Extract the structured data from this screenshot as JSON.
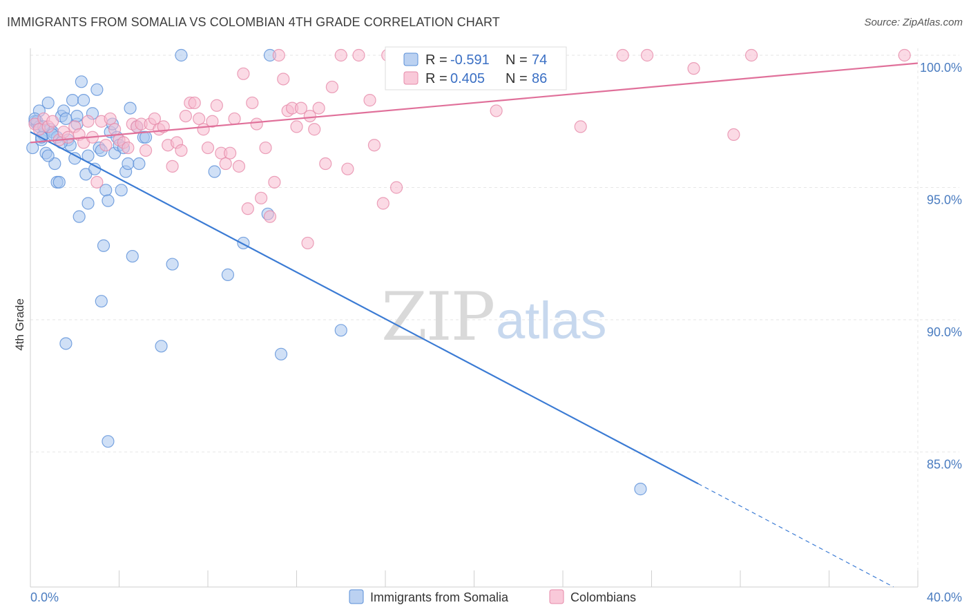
{
  "title": "IMMIGRANTS FROM SOMALIA VS COLOMBIAN 4TH GRADE CORRELATION CHART",
  "source": "Source: ZipAtlas.com",
  "watermark": {
    "zip": "ZIP",
    "atlas": "atlas"
  },
  "legend": {
    "r_label": "R =",
    "n_label": "N =",
    "rows": [
      {
        "r": "-0.591",
        "n": "74",
        "fill": "#aac6ee",
        "stroke": "#5a8fd8"
      },
      {
        "r": "0.405",
        "n": "86",
        "fill": "#f7bcd0",
        "stroke": "#e68aa9"
      }
    ]
  },
  "bottom_legend": [
    {
      "label": "Immigrants from Somalia",
      "fill": "#aac6ee",
      "stroke": "#5a8fd8"
    },
    {
      "label": "Colombians",
      "fill": "#f7bcd0",
      "stroke": "#e68aa9"
    }
  ],
  "chart_data": {
    "type": "scatter",
    "xlabel": "",
    "ylabel": "4th Grade",
    "xlim": [
      0,
      40
    ],
    "ylim": [
      80.5,
      100.9
    ],
    "x_tick_labels": [
      {
        "value": 0,
        "label": "0.0%"
      },
      {
        "value": 40,
        "label": "40.0%"
      }
    ],
    "y_tick_labels": [
      {
        "value": 100,
        "label": "100.0%"
      },
      {
        "value": 95,
        "label": "95.0%"
      },
      {
        "value": 90,
        "label": "90.0%"
      },
      {
        "value": 85,
        "label": "85.0%"
      }
    ],
    "series": [
      {
        "name": "Immigrants from Somalia",
        "color": "#5a8fd8",
        "fill": "#aac6ee",
        "trend": {
          "x0": 0,
          "y0": 97.1,
          "x1": 30.1,
          "y1": 83.8,
          "dash_to_x": 38.9,
          "dash_to_y": 79.9,
          "color": "#3b7bd4"
        },
        "points": [
          [
            0.1,
            96.5
          ],
          [
            0.2,
            97.5
          ],
          [
            0.3,
            97.4
          ],
          [
            0.4,
            97.9
          ],
          [
            0.5,
            96.8
          ],
          [
            0.6,
            97.0
          ],
          [
            0.7,
            96.3
          ],
          [
            0.8,
            98.2
          ],
          [
            0.9,
            97.2
          ],
          [
            1.0,
            97.1
          ],
          [
            1.1,
            95.9
          ],
          [
            1.2,
            96.9
          ],
          [
            1.2,
            95.2
          ],
          [
            1.3,
            95.2
          ],
          [
            1.4,
            97.7
          ],
          [
            1.5,
            97.9
          ],
          [
            1.6,
            97.6
          ],
          [
            1.7,
            96.8
          ],
          [
            1.8,
            96.6
          ],
          [
            1.9,
            98.3
          ],
          [
            2.0,
            96.1
          ],
          [
            2.1,
            97.4
          ],
          [
            2.1,
            97.7
          ],
          [
            2.2,
            93.9
          ],
          [
            2.3,
            99.0
          ],
          [
            2.4,
            98.3
          ],
          [
            2.5,
            95.5
          ],
          [
            2.6,
            96.2
          ],
          [
            2.6,
            94.4
          ],
          [
            2.8,
            97.8
          ],
          [
            2.9,
            95.7
          ],
          [
            3.0,
            98.7
          ],
          [
            3.1,
            96.5
          ],
          [
            3.2,
            96.4
          ],
          [
            3.3,
            92.8
          ],
          [
            3.4,
            94.9
          ],
          [
            3.5,
            94.5
          ],
          [
            3.6,
            97.1
          ],
          [
            3.7,
            97.4
          ],
          [
            3.8,
            96.3
          ],
          [
            3.9,
            96.9
          ],
          [
            4.0,
            96.6
          ],
          [
            4.1,
            94.9
          ],
          [
            4.2,
            96.5
          ],
          [
            4.3,
            95.6
          ],
          [
            4.4,
            95.9
          ],
          [
            4.5,
            98.0
          ],
          [
            4.6,
            92.4
          ],
          [
            4.8,
            97.3
          ],
          [
            4.9,
            95.9
          ],
          [
            5.1,
            96.9
          ],
          [
            5.2,
            96.9
          ],
          [
            0.3,
            97.5
          ],
          [
            0.4,
            97.3
          ],
          [
            0.6,
            97.3
          ],
          [
            0.8,
            96.2
          ],
          [
            1.0,
            97.0
          ],
          [
            1.6,
            89.1
          ],
          [
            3.2,
            90.7
          ],
          [
            3.5,
            85.4
          ],
          [
            5.9,
            89.0
          ],
          [
            6.4,
            92.1
          ],
          [
            6.8,
            100.0
          ],
          [
            8.3,
            95.6
          ],
          [
            8.9,
            91.7
          ],
          [
            9.6,
            92.9
          ],
          [
            10.7,
            94.0
          ],
          [
            10.8,
            100.0
          ],
          [
            11.3,
            88.7
          ],
          [
            14.0,
            89.6
          ],
          [
            27.5,
            83.6
          ],
          [
            0.2,
            97.6
          ],
          [
            0.5,
            96.9
          ],
          [
            1.4,
            96.7
          ]
        ]
      },
      {
        "name": "Colombians",
        "color": "#e68aa9",
        "fill": "#f7bcd0",
        "trend": {
          "x0": 0,
          "y0": 96.7,
          "x1": 40,
          "y1": 99.7,
          "color": "#e0709a"
        },
        "points": [
          [
            0.2,
            97.4
          ],
          [
            0.4,
            97.2
          ],
          [
            0.6,
            97.6
          ],
          [
            0.8,
            97.3
          ],
          [
            1.0,
            97.5
          ],
          [
            1.3,
            96.8
          ],
          [
            1.5,
            97.1
          ],
          [
            1.7,
            96.9
          ],
          [
            2.0,
            97.3
          ],
          [
            2.2,
            97.0
          ],
          [
            2.4,
            96.7
          ],
          [
            2.6,
            97.5
          ],
          [
            2.8,
            96.9
          ],
          [
            3.0,
            95.2
          ],
          [
            3.2,
            97.5
          ],
          [
            3.4,
            96.6
          ],
          [
            3.6,
            97.6
          ],
          [
            3.8,
            97.2
          ],
          [
            4.0,
            96.8
          ],
          [
            4.2,
            96.7
          ],
          [
            4.4,
            96.5
          ],
          [
            4.6,
            97.4
          ],
          [
            4.8,
            97.3
          ],
          [
            5.0,
            97.4
          ],
          [
            5.2,
            96.4
          ],
          [
            5.4,
            97.4
          ],
          [
            5.6,
            97.6
          ],
          [
            5.8,
            97.2
          ],
          [
            6.0,
            97.3
          ],
          [
            6.2,
            96.6
          ],
          [
            6.4,
            95.8
          ],
          [
            6.6,
            96.7
          ],
          [
            6.8,
            96.4
          ],
          [
            7.0,
            97.7
          ],
          [
            7.2,
            98.2
          ],
          [
            7.4,
            98.2
          ],
          [
            7.6,
            97.6
          ],
          [
            7.8,
            97.2
          ],
          [
            8.0,
            96.5
          ],
          [
            8.2,
            97.5
          ],
          [
            8.4,
            98.1
          ],
          [
            8.6,
            96.3
          ],
          [
            8.8,
            95.9
          ],
          [
            9.0,
            96.3
          ],
          [
            9.2,
            97.6
          ],
          [
            9.4,
            95.8
          ],
          [
            9.6,
            99.3
          ],
          [
            9.8,
            94.2
          ],
          [
            10.0,
            98.2
          ],
          [
            10.2,
            97.4
          ],
          [
            10.4,
            94.6
          ],
          [
            10.6,
            96.5
          ],
          [
            10.8,
            93.9
          ],
          [
            11.0,
            95.2
          ],
          [
            11.2,
            100.0
          ],
          [
            11.4,
            99.1
          ],
          [
            11.6,
            97.9
          ],
          [
            11.8,
            98.0
          ],
          [
            12.0,
            97.3
          ],
          [
            12.2,
            98.0
          ],
          [
            12.5,
            92.9
          ],
          [
            12.6,
            97.7
          ],
          [
            12.8,
            97.2
          ],
          [
            13.0,
            98.0
          ],
          [
            13.3,
            95.9
          ],
          [
            13.6,
            98.8
          ],
          [
            14.0,
            100.0
          ],
          [
            14.3,
            95.7
          ],
          [
            14.8,
            100.0
          ],
          [
            15.3,
            98.3
          ],
          [
            15.5,
            96.6
          ],
          [
            15.9,
            94.4
          ],
          [
            16.1,
            100.0
          ],
          [
            16.5,
            95.0
          ],
          [
            17.0,
            100.0
          ],
          [
            18.0,
            100.0
          ],
          [
            18.5,
            100.0
          ],
          [
            21.0,
            97.9
          ],
          [
            22.3,
            100.0
          ],
          [
            24.8,
            97.3
          ],
          [
            26.7,
            100.0
          ],
          [
            27.8,
            100.0
          ],
          [
            29.9,
            99.5
          ],
          [
            31.7,
            97.0
          ],
          [
            32.5,
            100.0
          ],
          [
            39.4,
            100.0
          ]
        ]
      }
    ]
  }
}
